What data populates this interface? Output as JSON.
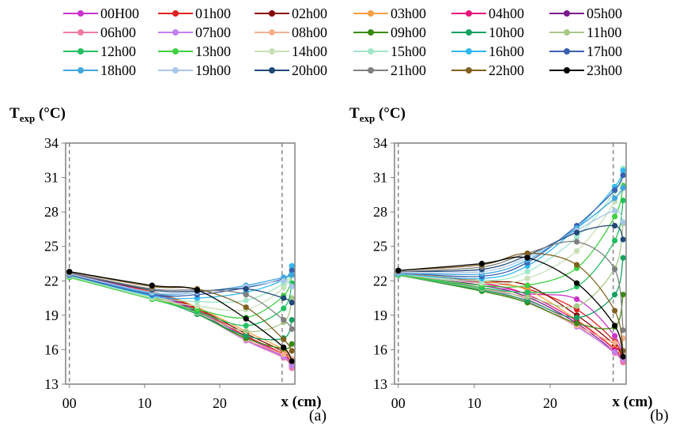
{
  "legend": [
    {
      "label": "00H00",
      "color": "#cc33cc"
    },
    {
      "label": "01h00",
      "color": "#e02020"
    },
    {
      "label": "02h00",
      "color": "#8b0000"
    },
    {
      "label": "03h00",
      "color": "#f5a040"
    },
    {
      "label": "04h00",
      "color": "#e8147a"
    },
    {
      "label": "05h00",
      "color": "#7a1a8a"
    },
    {
      "label": "06h00",
      "color": "#f07aa8"
    },
    {
      "label": "07h00",
      "color": "#c080f0"
    },
    {
      "label": "08h00",
      "color": "#f5b090"
    },
    {
      "label": "09h00",
      "color": "#3a8a10"
    },
    {
      "label": "10h00",
      "color": "#16a060"
    },
    {
      "label": "11h00",
      "color": "#a8c888"
    },
    {
      "label": "12h00",
      "color": "#22c060"
    },
    {
      "label": "13h00",
      "color": "#40d040"
    },
    {
      "label": "14h00",
      "color": "#c8e0b8"
    },
    {
      "label": "15h00",
      "color": "#a0e8c8"
    },
    {
      "label": "16h00",
      "color": "#30b8f0"
    },
    {
      "label": "17h00",
      "color": "#3a60b0"
    },
    {
      "label": "18h00",
      "color": "#40a8e0"
    },
    {
      "label": "19h00",
      "color": "#a8c8e8"
    },
    {
      "label": "20h00",
      "color": "#204878"
    },
    {
      "label": "21h00",
      "color": "#808080"
    },
    {
      "label": "22h00",
      "color": "#806020"
    },
    {
      "label": "23h00",
      "color": "#000000"
    }
  ],
  "chart_data": [
    {
      "type": "line",
      "panel_label": "(a)",
      "ylabel_main": "T",
      "ylabel_sub": "exp",
      "ylabel_unit": " (°C)",
      "xlabel": "x (cm)",
      "x_tick_labels": [
        "00",
        "10",
        "20"
      ],
      "x_tick_values": [
        0,
        10,
        20
      ],
      "y_ticks": [
        13,
        16,
        19,
        22,
        25,
        28,
        31,
        34
      ],
      "xlim": [
        -0.5,
        30
      ],
      "ylim": [
        13,
        34
      ],
      "dashed_x": [
        0,
        28.3
      ],
      "x": [
        0,
        11,
        17,
        23.5,
        28.5,
        29.6
      ],
      "series": [
        {
          "values": [
            22.7,
            21.0,
            19.4,
            17.1,
            15.5,
            14.6
          ]
        },
        {
          "values": [
            22.7,
            21.0,
            19.5,
            17.2,
            15.6,
            14.7
          ]
        },
        {
          "values": [
            22.7,
            21.1,
            19.6,
            17.4,
            15.8,
            14.8
          ]
        },
        {
          "values": [
            22.7,
            21.1,
            19.7,
            17.6,
            16.0,
            14.9
          ]
        },
        {
          "values": [
            22.6,
            20.9,
            19.3,
            16.9,
            15.4,
            14.5
          ]
        },
        {
          "values": [
            22.6,
            20.9,
            19.3,
            16.8,
            15.3,
            14.4
          ]
        },
        {
          "values": [
            22.6,
            20.8,
            19.2,
            16.8,
            15.3,
            14.4
          ]
        },
        {
          "values": [
            22.5,
            20.8,
            19.2,
            16.8,
            15.4,
            14.6
          ]
        },
        {
          "values": [
            22.5,
            20.7,
            19.2,
            16.9,
            15.6,
            15.2
          ]
        },
        {
          "values": [
            22.5,
            20.6,
            19.1,
            17.0,
            16.1,
            16.5
          ]
        },
        {
          "values": [
            22.4,
            20.5,
            19.1,
            17.2,
            17.0,
            18.6
          ]
        },
        {
          "values": [
            22.4,
            20.5,
            19.2,
            17.6,
            18.4,
            20.5
          ]
        },
        {
          "values": [
            22.3,
            20.4,
            19.3,
            18.1,
            19.6,
            21.8
          ]
        },
        {
          "values": [
            22.3,
            20.4,
            19.5,
            18.8,
            20.7,
            22.5
          ]
        },
        {
          "values": [
            22.4,
            20.5,
            19.8,
            19.5,
            21.4,
            23.0
          ]
        },
        {
          "values": [
            22.4,
            20.6,
            20.2,
            20.3,
            21.8,
            23.2
          ]
        },
        {
          "values": [
            22.5,
            20.7,
            20.5,
            21.0,
            22.1,
            23.3
          ]
        },
        {
          "values": [
            22.5,
            20.8,
            20.8,
            21.4,
            22.2,
            22.9
          ]
        },
        {
          "values": [
            22.6,
            20.9,
            21.0,
            21.6,
            22.3,
            22.5
          ]
        },
        {
          "values": [
            22.6,
            21.0,
            21.0,
            21.5,
            22.0,
            21.5
          ]
        },
        {
          "values": [
            22.7,
            21.2,
            21.1,
            21.3,
            20.5,
            20.1
          ]
        },
        {
          "values": [
            22.7,
            21.3,
            21.2,
            20.8,
            18.6,
            17.8
          ]
        },
        {
          "values": [
            22.8,
            21.5,
            21.3,
            19.7,
            16.9,
            15.9
          ]
        },
        {
          "values": [
            22.8,
            21.6,
            21.2,
            18.7,
            16.2,
            15.0
          ]
        }
      ]
    },
    {
      "type": "line",
      "panel_label": "(b)",
      "ylabel_main": "T",
      "ylabel_sub": "exp",
      "ylabel_unit": " (°C)",
      "xlabel": "x (cm)",
      "x_tick_labels": [
        "00",
        "10",
        "20"
      ],
      "x_tick_values": [
        0,
        10,
        20
      ],
      "y_ticks": [
        13,
        16,
        19,
        22,
        25,
        28,
        31,
        34
      ],
      "xlim": [
        -0.5,
        30
      ],
      "ylim": [
        13,
        34
      ],
      "dashed_x": [
        0,
        28.3
      ],
      "x": [
        0,
        11,
        17,
        23.5,
        28.5,
        29.6
      ],
      "series": [
        {
          "values": [
            22.7,
            21.8,
            20.9,
            20.4,
            17.2,
            14.9
          ]
        },
        {
          "values": [
            22.7,
            21.9,
            21.3,
            19.5,
            16.7,
            15.0
          ]
        },
        {
          "values": [
            22.7,
            22.0,
            21.6,
            19.0,
            16.4,
            15.1
          ]
        },
        {
          "values": [
            22.7,
            22.0,
            21.2,
            18.6,
            16.1,
            15.2
          ]
        },
        {
          "values": [
            22.6,
            21.8,
            20.8,
            18.5,
            16.0,
            15.0
          ]
        },
        {
          "values": [
            22.6,
            21.6,
            20.6,
            18.3,
            15.8,
            14.9
          ]
        },
        {
          "values": [
            22.6,
            21.4,
            20.4,
            18.1,
            15.7,
            14.9
          ]
        },
        {
          "values": [
            22.5,
            21.3,
            20.2,
            18.0,
            15.8,
            15.2
          ]
        },
        {
          "values": [
            22.5,
            21.2,
            20.1,
            18.1,
            16.6,
            17.0
          ]
        },
        {
          "values": [
            22.5,
            21.1,
            20.1,
            18.3,
            18.0,
            20.8
          ]
        },
        {
          "values": [
            22.5,
            21.2,
            20.3,
            18.8,
            20.8,
            24.0
          ]
        },
        {
          "values": [
            22.5,
            21.3,
            20.6,
            19.8,
            23.1,
            27.0
          ]
        },
        {
          "values": [
            22.5,
            21.4,
            21.0,
            21.5,
            25.5,
            29.0
          ]
        },
        {
          "values": [
            22.5,
            21.6,
            21.6,
            23.1,
            27.6,
            30.3
          ]
        },
        {
          "values": [
            22.6,
            21.8,
            22.2,
            24.6,
            28.9,
            31.2
          ]
        },
        {
          "values": [
            22.6,
            22.0,
            22.8,
            25.8,
            29.8,
            31.8
          ]
        },
        {
          "values": [
            22.6,
            22.2,
            23.3,
            26.6,
            30.2,
            31.6
          ]
        },
        {
          "values": [
            22.7,
            22.4,
            23.6,
            26.8,
            29.9,
            31.2
          ]
        },
        {
          "values": [
            22.7,
            22.6,
            23.8,
            26.6,
            29.2,
            30.1
          ]
        },
        {
          "values": [
            22.7,
            22.8,
            24.0,
            26.4,
            28.1,
            27.1
          ]
        },
        {
          "values": [
            22.8,
            23.0,
            24.2,
            26.2,
            26.8,
            25.6
          ]
        },
        {
          "values": [
            22.8,
            23.2,
            24.4,
            25.4,
            23.0,
            17.7
          ]
        },
        {
          "values": [
            22.9,
            23.4,
            24.4,
            23.4,
            19.4,
            15.9
          ]
        },
        {
          "values": [
            22.9,
            23.5,
            24.0,
            21.8,
            18.1,
            15.4
          ]
        }
      ]
    }
  ]
}
